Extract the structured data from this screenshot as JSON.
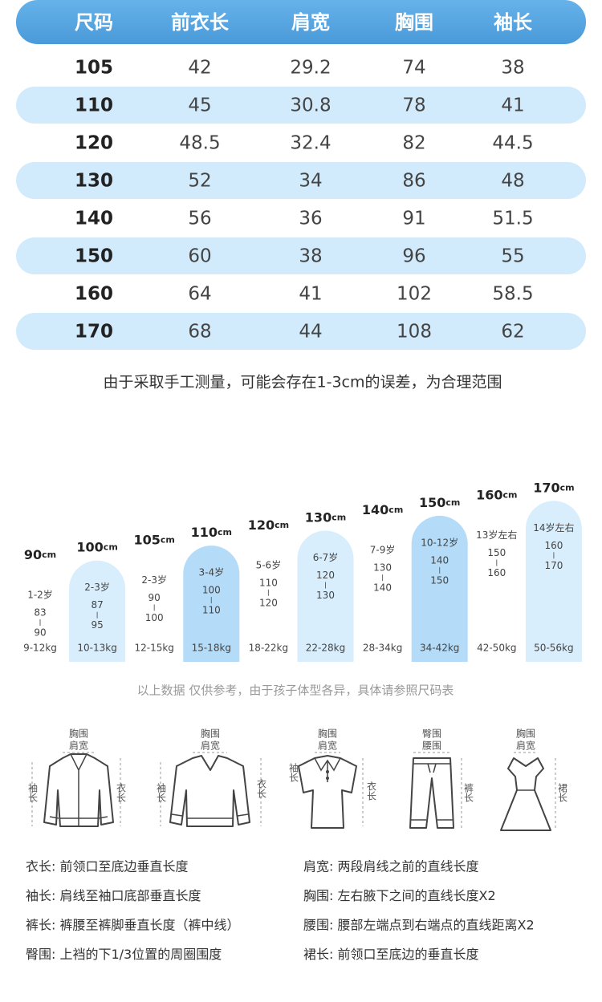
{
  "table": {
    "header": [
      "尺码",
      "前衣长",
      "肩宽",
      "胸围",
      "袖长"
    ],
    "rows": [
      [
        "105",
        "42",
        "29.2",
        "74",
        "38"
      ],
      [
        "110",
        "45",
        "30.8",
        "78",
        "41"
      ],
      [
        "120",
        "48.5",
        "32.4",
        "82",
        "44.5"
      ],
      [
        "130",
        "52",
        "34",
        "86",
        "48"
      ],
      [
        "140",
        "56",
        "36",
        "91",
        "51.5"
      ],
      [
        "150",
        "60",
        "38",
        "96",
        "55"
      ],
      [
        "160",
        "64",
        "41",
        "102",
        "58.5"
      ],
      [
        "170",
        "68",
        "44",
        "108",
        "62"
      ]
    ]
  },
  "note": "由于采取手工测量，可能会存在1-3cm的误差，为合理范围",
  "heights": {
    "items": [
      {
        "height": "90",
        "unit": "cm",
        "age": "1-2岁",
        "from": "83",
        "to": "90",
        "weight": "9-12kg"
      },
      {
        "height": "100",
        "unit": "cm",
        "age": "2-3岁",
        "from": "87",
        "to": "95",
        "weight": "10-13kg"
      },
      {
        "height": "105",
        "unit": "cm",
        "age": "2-3岁",
        "from": "90",
        "to": "100",
        "weight": "12-15kg"
      },
      {
        "height": "110",
        "unit": "cm",
        "age": "3-4岁",
        "from": "100",
        "to": "110",
        "weight": "15-18kg"
      },
      {
        "height": "120",
        "unit": "cm",
        "age": "5-6岁",
        "from": "110",
        "to": "120",
        "weight": "18-22kg"
      },
      {
        "height": "130",
        "unit": "cm",
        "age": "6-7岁",
        "from": "120",
        "to": "130",
        "weight": "22-28kg"
      },
      {
        "height": "140",
        "unit": "cm",
        "age": "7-9岁",
        "from": "130",
        "to": "140",
        "weight": "28-34kg"
      },
      {
        "height": "150",
        "unit": "cm",
        "age": "10-12岁",
        "from": "140",
        "to": "150",
        "weight": "34-42kg"
      },
      {
        "height": "160",
        "unit": "cm",
        "age": "13岁左右",
        "from": "150",
        "to": "160",
        "weight": "42-50kg"
      },
      {
        "height": "170",
        "unit": "cm",
        "age": "14岁左右",
        "from": "160",
        "to": "170",
        "weight": "50-56kg"
      }
    ],
    "note": "以上数据 仅供参考，由于孩子体型各异，具体请参照尺码表"
  },
  "garments": [
    {
      "top": [
        "胸围",
        "肩宽"
      ],
      "left": "袖长",
      "right": "衣长"
    },
    {
      "top": [
        "胸围",
        "肩宽"
      ],
      "left": "袖长",
      "right": "衣长"
    },
    {
      "top": [
        "胸围",
        "肩宽"
      ],
      "left": "袖长",
      "right": "衣长"
    },
    {
      "top": [
        "臀围",
        "腰围"
      ],
      "right": "裤长"
    },
    {
      "top": [
        "胸围",
        "肩宽"
      ],
      "right": "裙长"
    }
  ],
  "definitions": {
    "left": [
      "衣长: 前领口至底边垂直长度",
      "袖长: 肩线至袖口底部垂直长度",
      "裤长: 裤腰至裤脚垂直长度（裤中线）",
      "臀围: 上裆的下1/3位置的周圈围度"
    ],
    "right": [
      "肩宽: 两段肩线之前的直线长度",
      "胸围: 左右腋下之间的直线长度X2",
      "腰围: 腰部左端点到右端点的直线距离X2",
      "裙长: 前领口至底边的垂直长度"
    ]
  }
}
